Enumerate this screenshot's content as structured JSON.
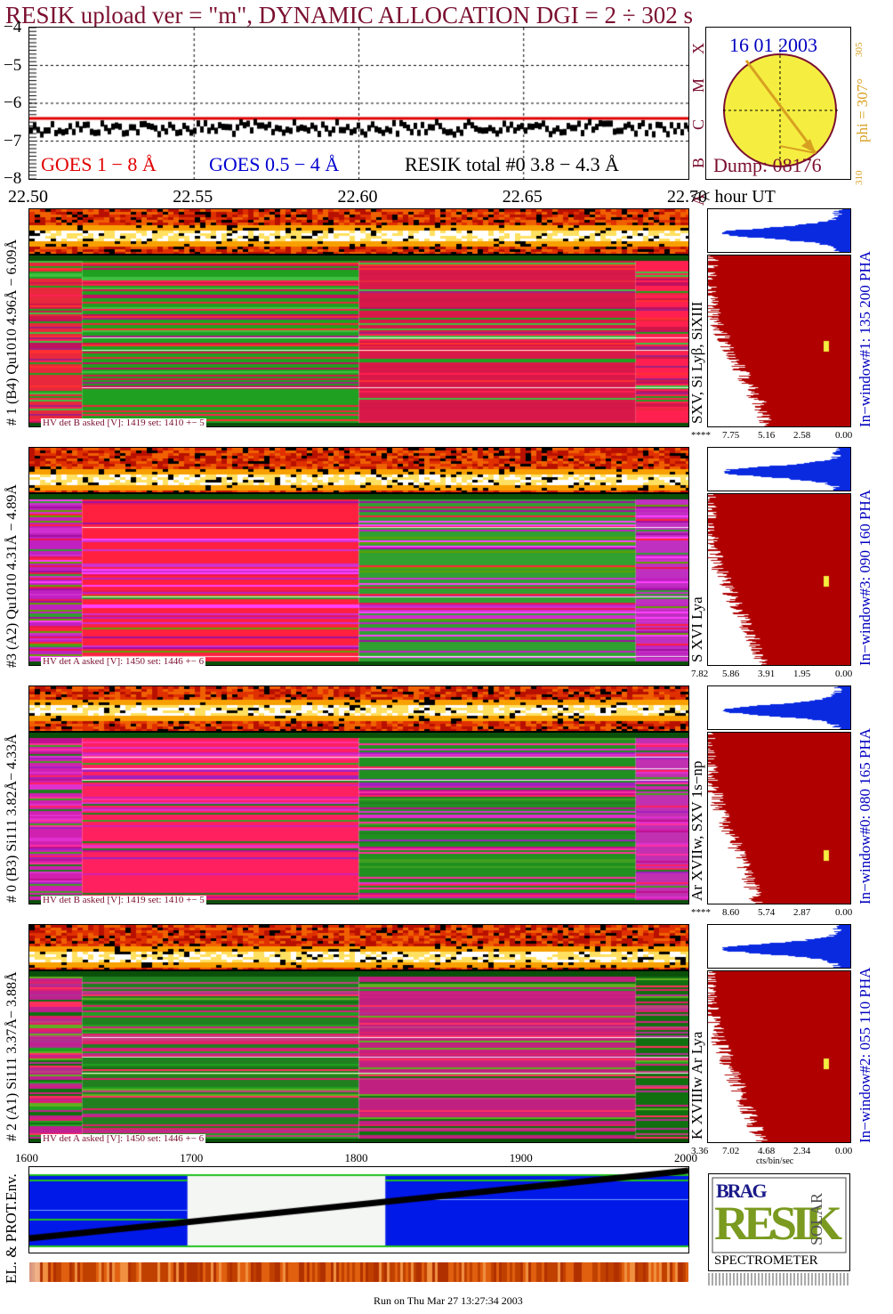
{
  "header": {
    "title": "RESIK upload ver = \"m\", DYNAMIC ALLOCATION  DGI =   2 ÷ 302 s",
    "colors": {
      "title": "#7b1030",
      "goes_long": "#e00000",
      "goes_short": "#0000d0",
      "resik": "#000000"
    }
  },
  "light_curve": {
    "y_ticks": [
      "−4",
      "−5",
      "−6",
      "−7",
      "−8"
    ],
    "right_ticks": [
      "X",
      "M",
      "C",
      "B",
      "A"
    ],
    "legend_goes_long": "GOES 1 − 8 Å",
    "legend_goes_short": "GOES 0.5 − 4 Å",
    "legend_resik": "RESIK total #0  3.8 − 4.3 Å"
  },
  "time_axis": {
    "ticks": [
      "22.50",
      "22.55",
      "22.60",
      "22.65",
      "22.70"
    ],
    "unit_label": "<< hour UT"
  },
  "sun_panel": {
    "date": "16 01 2003",
    "dump": "Dump: 08176",
    "phi_label": "phi = 307°",
    "phi_sup": "305",
    "phi_low": "310"
  },
  "detectors": [
    {
      "side_label": "# 1 (B4) Qu1010 4.96Å − 6.09Å",
      "lines_label": "SXV, Si Lyβ, SiXIII",
      "hv_label": "HV det B asked [V]:  1419 set:  1410 +−     5",
      "window_label": "In−window#1:  135 200 PHA",
      "pha_ticks": [
        "****",
        "7.75",
        "5.16",
        "2.58",
        "0.00"
      ]
    },
    {
      "side_label": "#3 (A2) Qu1010  4.31Å − 4.89Å",
      "lines_label": "S XVI Lya",
      "hv_label": "HV det A asked [V]:  1450 set:  1446 +−     6",
      "window_label": "In−window#3:  090 160 PHA",
      "pha_ticks": [
        "7.82",
        "5.86",
        "3.91",
        "1.95",
        "0.00"
      ]
    },
    {
      "side_label": "# 0 (B3) Si111  3.82Å− 4.33Å",
      "lines_label": "Ar XVIIw,  SXV 1s−np",
      "hv_label": "HV det B asked [V]:  1419 set:  1410 +−     5",
      "window_label": "In−window#0:  080 165 PHA",
      "pha_ticks": [
        "****",
        "8.60",
        "5.74",
        "2.87",
        "0.00"
      ]
    },
    {
      "side_label": "# 2 (A1) Si111  3.37Å− 3.88Å",
      "lines_label": "K XVIIIw  Ar Lya",
      "hv_label": "HV det A asked [V]:  1450 set:  1446 +−     6",
      "window_label": "In−window#2:  055 110 PHA",
      "pha_ticks": [
        "3.36",
        "7.02",
        "4.68",
        "2.34",
        "0.00"
      ],
      "pha_unit": "cts/bin/sec"
    }
  ],
  "env_panel": {
    "x_ticks": [
      "1600",
      "1700",
      "1800",
      "1900",
      "2000"
    ],
    "side_label": "EL. & PROT.Env."
  },
  "logo": {
    "letters_bragg": "BRAG",
    "letters_resik": "RESIK",
    "letters_solar": "SOLAR",
    "caption": "SPECTROMETER"
  },
  "footer": "Run on Thu Mar 27 13:27:34 2003",
  "chart_data": {
    "type": "heatmap",
    "title": "RESIK upload ver = \"m\", DYNAMIC ALLOCATION  DGI =   2 ÷ 302 s",
    "xlabel": "<< hour UT",
    "x_ticks": [
      22.5,
      22.55,
      22.6,
      22.65,
      22.7
    ],
    "xlim": [
      22.5,
      22.7
    ],
    "light_curve": {
      "type": "line",
      "ylim": [
        -8,
        -4
      ],
      "y_ticks": [
        -4,
        -5,
        -6,
        -7,
        -8
      ],
      "resik_total_level": -6.65,
      "goes_long_level": -6.4
    },
    "env_panel": {
      "xlim": [
        1600,
        2000
      ],
      "x_ticks": [
        1600,
        1700,
        1800,
        1900,
        2000
      ]
    }
  }
}
